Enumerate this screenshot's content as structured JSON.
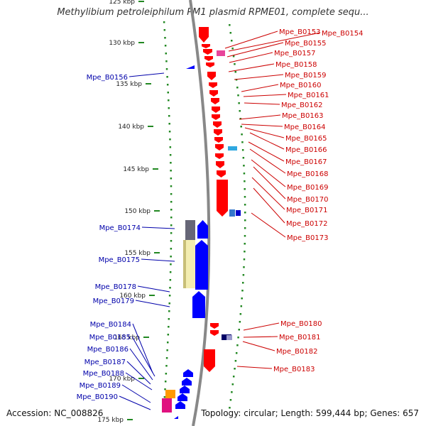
{
  "title": "Methylibium petroleiphilum PM1 plasmid RPME01, complete sequ...",
  "footer": {
    "accession": "Accession: NC_008826",
    "summary": "Topology: circular; Length: 599,444 bp; Genes: 657"
  },
  "axis_ticks": [
    "125 kbp",
    "130 kbp",
    "135 kbp",
    "140 kbp",
    "145 kbp",
    "150 kbp",
    "155 kbp",
    "160 kbp",
    "165 kbp",
    "170 kbp",
    "175 kbp"
  ],
  "genes_right": [
    "Mpe_B0153",
    "Mpe_B0154",
    "Mpe_B0155",
    "Mpe_B0157",
    "Mpe_B0158",
    "Mpe_B0159",
    "Mpe_B0160",
    "Mpe_B0161",
    "Mpe_B0162",
    "Mpe_B0163",
    "Mpe_B0164",
    "Mpe_B0165",
    "Mpe_B0166",
    "Mpe_B0167",
    "Mpe_B0168",
    "Mpe_B0169",
    "Mpe_B0170",
    "Mpe_B0171",
    "Mpe_B0172",
    "Mpe_B0173",
    "Mpe_B0180",
    "Mpe_B0181",
    "Mpe_B0182",
    "Mpe_B0183"
  ],
  "genes_left": [
    "Mpe_B0156",
    "Mpe_B0174",
    "Mpe_B0175",
    "Mpe_B0178",
    "Mpe_B0179",
    "Mpe_B0184",
    "Mpe_B0185",
    "Mpe_B0186",
    "Mpe_B0187",
    "Mpe_B0188",
    "Mpe_B0189",
    "Mpe_B0190"
  ],
  "colors": {
    "forward": "#ff0000",
    "reverse": "#0000ff",
    "label_forward": "#cc0000",
    "label_reverse": "#0000aa",
    "backbone": "#888888",
    "gc_dots": "#228822"
  }
}
